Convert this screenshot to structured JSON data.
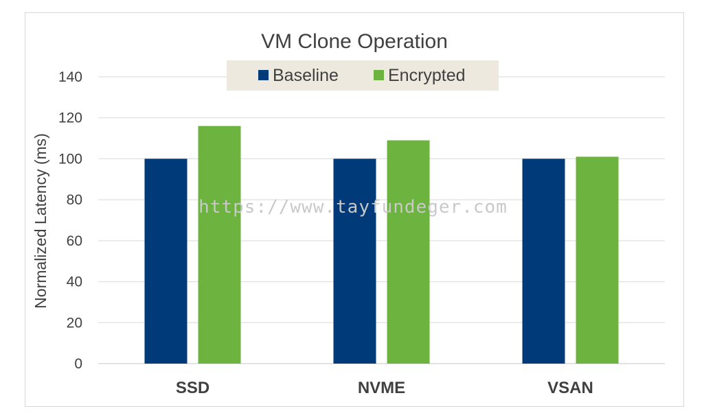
{
  "chart_data": {
    "type": "bar",
    "title": "VM Clone Operation",
    "xlabel": "",
    "ylabel": "Normalized Latency (ms)",
    "categories": [
      "SSD",
      "NVME",
      "VSAN"
    ],
    "series": [
      {
        "name": "Baseline",
        "color": "#003a78",
        "values": [
          100,
          100,
          100
        ]
      },
      {
        "name": "Encrypted",
        "color": "#6db33f",
        "values": [
          116,
          109,
          101
        ]
      }
    ],
    "ylim": [
      0,
      140
    ],
    "yticks": [
      0,
      20,
      40,
      60,
      80,
      100,
      120,
      140
    ],
    "grid": true,
    "legend_position": "top-center",
    "legend_background": "#ede9df",
    "gridline_color": "#d9d9d9"
  },
  "watermark": "https://www.tayfundeger.com"
}
